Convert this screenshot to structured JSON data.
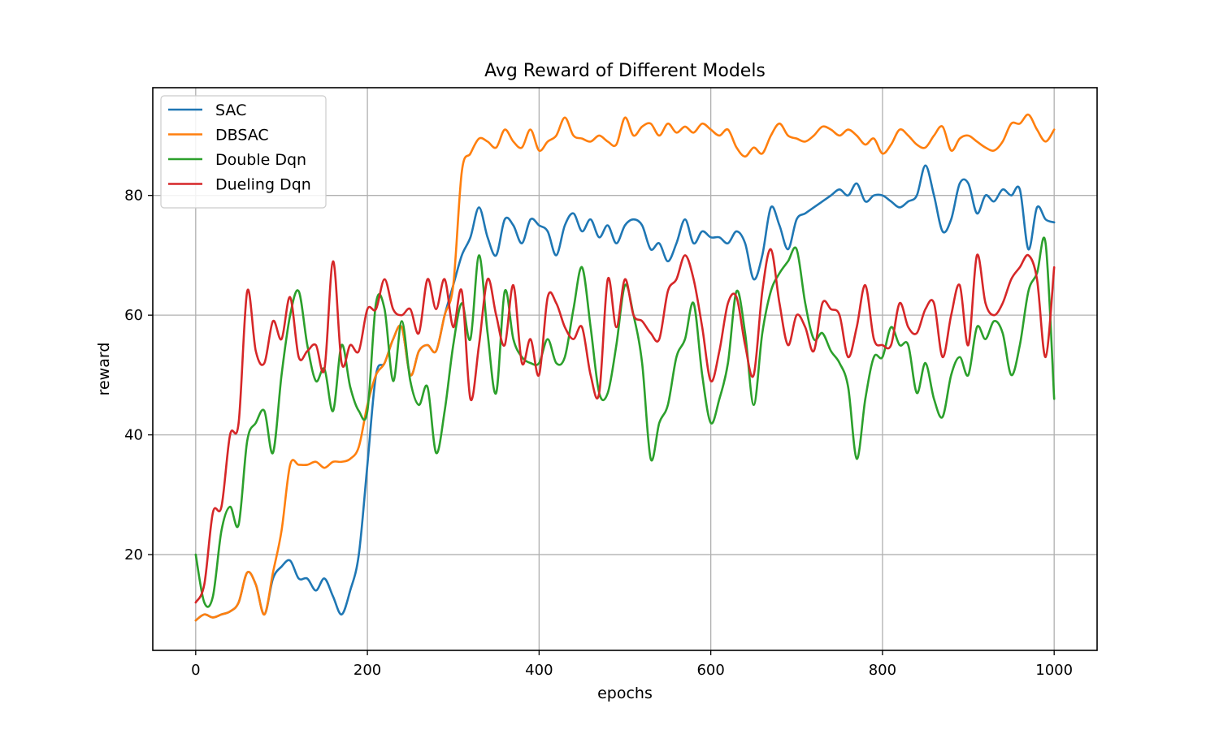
{
  "chart_data": {
    "type": "line",
    "title": "Avg Reward of Different Models",
    "xlabel": "epochs",
    "ylabel": "reward",
    "xlim": [
      -50,
      1050
    ],
    "ylim": [
      4,
      98
    ],
    "xticks": [
      0,
      200,
      400,
      600,
      800,
      1000
    ],
    "yticks": [
      20,
      40,
      60,
      80
    ],
    "grid": true,
    "legend_position": "upper-left",
    "series": [
      {
        "name": "SAC",
        "color": "#1f77b4",
        "x": [
          0,
          10,
          20,
          30,
          40,
          50,
          60,
          70,
          80,
          90,
          100,
          110,
          120,
          130,
          140,
          150,
          160,
          170,
          180,
          190,
          200,
          210,
          220,
          230,
          240,
          250,
          260,
          270,
          280,
          290,
          300,
          310,
          320,
          330,
          340,
          350,
          360,
          370,
          380,
          390,
          400,
          410,
          420,
          430,
          440,
          450,
          460,
          470,
          480,
          490,
          500,
          510,
          520,
          530,
          540,
          550,
          560,
          570,
          580,
          590,
          600,
          610,
          620,
          630,
          640,
          650,
          660,
          670,
          680,
          690,
          700,
          710,
          720,
          730,
          740,
          750,
          760,
          770,
          780,
          790,
          800,
          810,
          820,
          830,
          840,
          850,
          860,
          870,
          880,
          890,
          900,
          910,
          920,
          930,
          940,
          950,
          960,
          970,
          980,
          990,
          1000
        ],
        "y": [
          9,
          10,
          9.5,
          10,
          10.5,
          12,
          17,
          15,
          10,
          16,
          18,
          19,
          16,
          16,
          14,
          16,
          13,
          10,
          14,
          20,
          35,
          50,
          52,
          56,
          58,
          50,
          54,
          55,
          54,
          60,
          65,
          70,
          73,
          78,
          73,
          70,
          76,
          75,
          72,
          76,
          75,
          74,
          70,
          75,
          77,
          74,
          76,
          73,
          75,
          72,
          75,
          76,
          75,
          71,
          72,
          69,
          72,
          76,
          72,
          74,
          73,
          73,
          72,
          74,
          72,
          66,
          70,
          78,
          75,
          71,
          76,
          77,
          78,
          79,
          80,
          81,
          80,
          82,
          79,
          80,
          80,
          79,
          78,
          79,
          80,
          85,
          80,
          74,
          76,
          82,
          82,
          77,
          80,
          79,
          81,
          80,
          81,
          71,
          78,
          76,
          75.5
        ]
      },
      {
        "name": "DBSAC",
        "color": "#ff7f0e",
        "x": [
          0,
          10,
          20,
          30,
          40,
          50,
          60,
          70,
          80,
          90,
          100,
          110,
          120,
          130,
          140,
          150,
          160,
          170,
          180,
          190,
          200,
          210,
          220,
          230,
          240,
          250,
          260,
          270,
          280,
          290,
          300,
          310,
          320,
          330,
          340,
          350,
          360,
          370,
          380,
          390,
          400,
          410,
          420,
          430,
          440,
          450,
          460,
          470,
          480,
          490,
          500,
          510,
          520,
          530,
          540,
          550,
          560,
          570,
          580,
          590,
          600,
          610,
          620,
          630,
          640,
          650,
          660,
          670,
          680,
          690,
          700,
          710,
          720,
          730,
          740,
          750,
          760,
          770,
          780,
          790,
          800,
          810,
          820,
          830,
          840,
          850,
          860,
          870,
          880,
          890,
          900,
          910,
          920,
          930,
          940,
          950,
          960,
          970,
          980,
          990,
          1000
        ],
        "y": [
          9,
          10,
          9.5,
          10,
          10.5,
          12,
          17,
          15,
          10,
          17,
          24,
          35,
          35,
          35,
          35.5,
          34.5,
          35.5,
          35.5,
          36,
          38,
          45,
          50,
          52,
          56,
          58,
          50,
          54,
          55,
          54,
          60,
          65,
          84,
          87,
          89.5,
          89,
          88,
          91,
          89,
          88,
          91,
          87.5,
          89,
          90,
          93,
          90,
          89.5,
          89,
          90,
          89,
          88.5,
          93,
          90,
          91.5,
          92,
          90,
          92,
          90.5,
          91.5,
          90.5,
          92,
          91,
          90,
          91,
          88,
          86.5,
          88,
          87,
          90,
          92,
          90,
          89.5,
          89,
          90,
          91.5,
          91,
          90,
          91,
          90,
          88.5,
          89.5,
          87,
          88.5,
          91,
          90,
          88.5,
          88,
          90,
          91.5,
          87.5,
          89.5,
          90,
          89,
          88,
          87.5,
          89,
          92,
          92,
          93.5,
          91,
          89,
          91
        ]
      },
      {
        "name": "Double Dqn",
        "color": "#2ca02c",
        "x": [
          0,
          10,
          20,
          30,
          40,
          50,
          60,
          70,
          80,
          90,
          100,
          110,
          120,
          130,
          140,
          150,
          160,
          170,
          180,
          190,
          200,
          210,
          220,
          230,
          240,
          250,
          260,
          270,
          280,
          290,
          300,
          310,
          320,
          330,
          340,
          350,
          360,
          370,
          380,
          390,
          400,
          410,
          420,
          430,
          440,
          450,
          460,
          470,
          480,
          490,
          500,
          510,
          520,
          530,
          540,
          550,
          560,
          570,
          580,
          590,
          600,
          610,
          620,
          630,
          640,
          650,
          660,
          670,
          680,
          690,
          700,
          710,
          720,
          730,
          740,
          750,
          760,
          770,
          780,
          790,
          800,
          810,
          820,
          830,
          840,
          850,
          860,
          870,
          880,
          890,
          900,
          910,
          920,
          930,
          940,
          950,
          960,
          970,
          980,
          990,
          1000
        ],
        "y": [
          20,
          12,
          13,
          24,
          28,
          25,
          39,
          42,
          44,
          37,
          50,
          60,
          64,
          55,
          49,
          51,
          44,
          55,
          48,
          44,
          44,
          62,
          61,
          49,
          59,
          49,
          45,
          48,
          37,
          44,
          55,
          62,
          56,
          70,
          57,
          47,
          64,
          56,
          53,
          52,
          52,
          56,
          52,
          53,
          61,
          68,
          58,
          47,
          47,
          55,
          65,
          60,
          52,
          36,
          42,
          45,
          53,
          56,
          62,
          50,
          42,
          46,
          52,
          64,
          57,
          45,
          57,
          64,
          67,
          69,
          71,
          62,
          56,
          57,
          54,
          52,
          48,
          36,
          46,
          53,
          53,
          58,
          55,
          55,
          47,
          52,
          46,
          43,
          50,
          53,
          50,
          58,
          56,
          59,
          57,
          50,
          55,
          64,
          67,
          72,
          46
        ]
      },
      {
        "name": "Dueling Dqn",
        "color": "#d62728",
        "x": [
          0,
          10,
          20,
          30,
          40,
          50,
          60,
          70,
          80,
          90,
          100,
          110,
          120,
          130,
          140,
          150,
          160,
          170,
          180,
          190,
          200,
          210,
          220,
          230,
          240,
          250,
          260,
          270,
          280,
          290,
          300,
          310,
          320,
          330,
          340,
          350,
          360,
          370,
          380,
          390,
          400,
          410,
          420,
          430,
          440,
          450,
          460,
          470,
          480,
          490,
          500,
          510,
          520,
          530,
          540,
          550,
          560,
          570,
          580,
          590,
          600,
          610,
          620,
          630,
          640,
          650,
          660,
          670,
          680,
          690,
          700,
          710,
          720,
          730,
          740,
          750,
          760,
          770,
          780,
          790,
          800,
          810,
          820,
          830,
          840,
          850,
          860,
          870,
          880,
          890,
          900,
          910,
          920,
          930,
          940,
          950,
          960,
          970,
          980,
          990,
          1000
        ],
        "y": [
          12,
          15,
          27,
          28,
          40,
          42,
          64,
          54,
          52,
          59,
          56,
          63,
          53,
          54,
          55,
          51,
          69,
          52,
          55,
          54,
          61,
          61,
          66,
          61,
          60,
          61,
          57,
          66,
          61,
          66,
          58,
          64,
          46,
          55,
          66,
          60,
          55,
          65,
          52,
          56,
          50,
          63,
          62,
          58,
          56,
          58,
          50,
          47,
          66,
          58,
          66,
          60,
          59,
          57,
          56,
          64,
          66,
          70,
          66,
          58,
          49,
          54,
          62,
          63,
          55,
          50,
          64,
          71,
          62,
          55,
          60,
          58,
          54,
          62,
          61,
          60,
          53,
          58,
          65,
          56,
          55,
          55,
          62,
          58,
          57,
          61,
          62,
          53,
          60,
          65,
          55,
          70,
          62,
          60,
          62,
          66,
          68,
          70,
          66,
          53,
          68
        ]
      }
    ]
  }
}
